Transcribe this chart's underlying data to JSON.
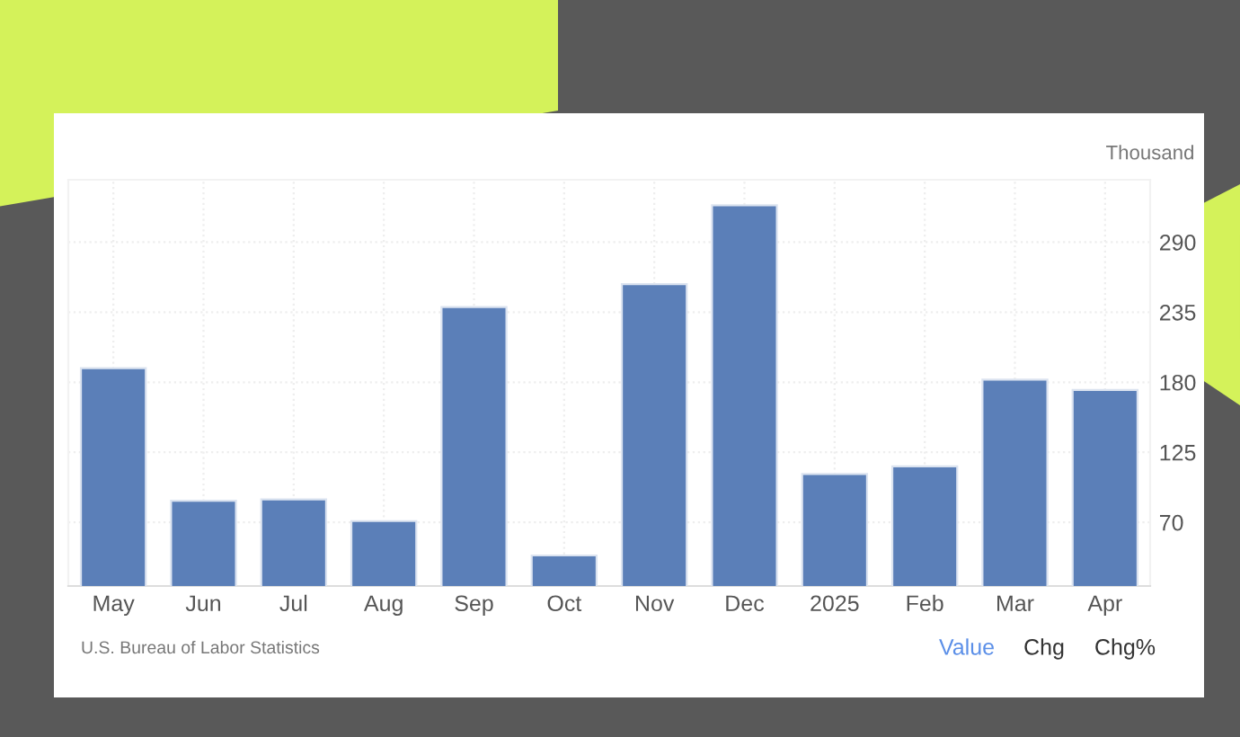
{
  "chart_data": {
    "type": "bar",
    "ylabel": "Thousand",
    "categories": [
      "May",
      "Jun",
      "Jul",
      "Aug",
      "Sep",
      "Oct",
      "Nov",
      "Dec",
      "2025",
      "Feb",
      "Mar",
      "Apr"
    ],
    "values": [
      191,
      87,
      88,
      71,
      239,
      44,
      257,
      319,
      108,
      114,
      182,
      174
    ],
    "color": "#5b7fb8",
    "ylim": [
      20,
      339
    ],
    "yticks": [
      70,
      125,
      180,
      235,
      290
    ],
    "grid": true,
    "annotations": [
      "U.S. Bureau of Labor Statistics",
      "Value",
      "Chg",
      "Chg%"
    ]
  }
}
